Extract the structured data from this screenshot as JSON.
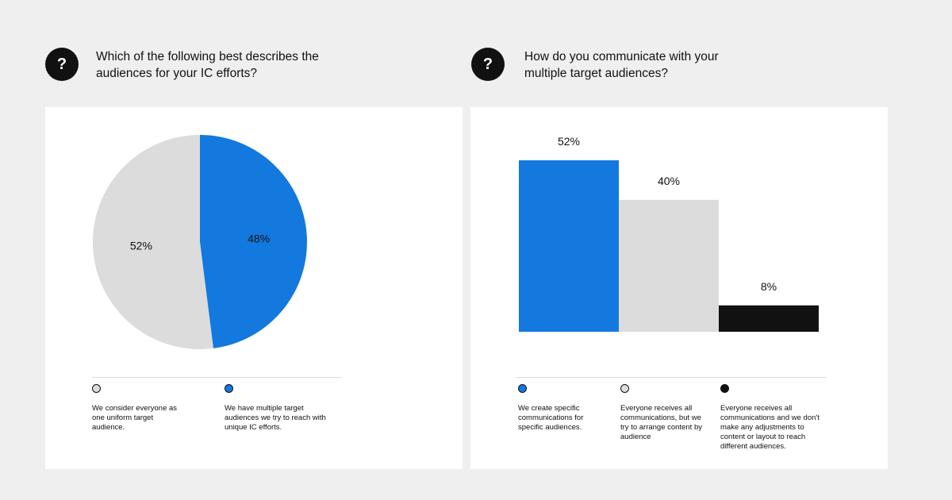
{
  "left": {
    "question": "Which of the following best describes the audiences for your IC efforts?",
    "icon": "question-icon",
    "legend": [
      {
        "label": "We consider everyone as one uniform target audience.",
        "color": "#dcdcdc"
      },
      {
        "label": "We have multiple target audiences we try to reach with unique IC efforts.",
        "color": "#1379de"
      }
    ]
  },
  "right": {
    "question": "How do you communicate with your multiple target audiences?",
    "icon": "question-icon",
    "legend": [
      {
        "label": "We create specific communications for specific audiences.",
        "color": "#1379de"
      },
      {
        "label": "Everyone receives all communications, but we try to arrange content by audience",
        "color": "#dcdcdc"
      },
      {
        "label": "Everyone receives all communications and we don't make any adjustments to content or layout to reach different audiences.",
        "color": "#111111"
      }
    ]
  },
  "chart_data": [
    {
      "type": "pie",
      "slices": [
        {
          "label": "We have multiple target audiences we try to reach with unique IC efforts.",
          "value": 48,
          "data_label": "48%",
          "color": "#1379de"
        },
        {
          "label": "We consider everyone as one uniform target audience.",
          "value": 52,
          "data_label": "52%",
          "color": "#dcdcdc"
        }
      ],
      "legend": "bottom"
    },
    {
      "type": "bar",
      "categories": [
        "We create specific communications for specific audiences.",
        "Everyone receives all communications, but we try to arrange content by audience",
        "Everyone receives all communications and we don't make any adjustments to content or layout to reach different audiences."
      ],
      "values": [
        52,
        40,
        8
      ],
      "data_labels": [
        "52%",
        "40%",
        "8%"
      ],
      "colors": [
        "#1379de",
        "#dcdcdc",
        "#111111"
      ],
      "ylim": [
        0,
        52
      ],
      "grid": false,
      "legend": "bottom"
    }
  ]
}
